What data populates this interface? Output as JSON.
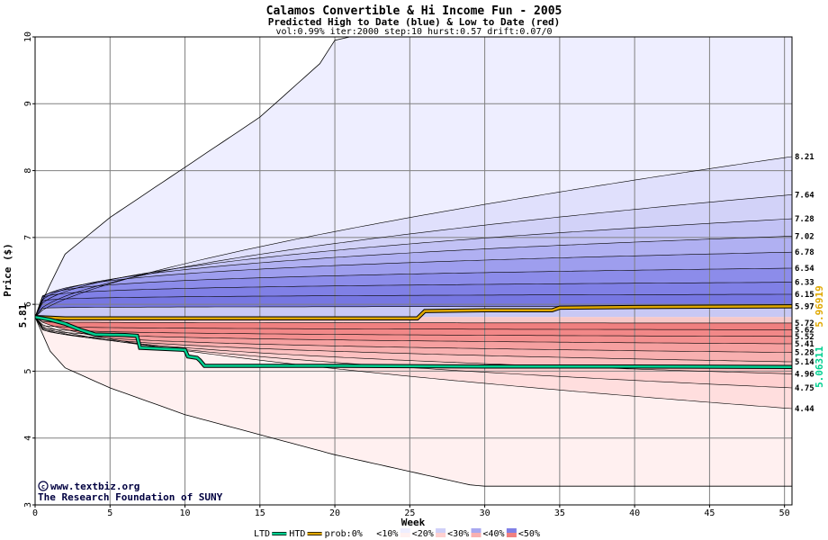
{
  "chart_data": {
    "type": "area",
    "title": "Calamos Convertible & Hi Income Fun - 2005",
    "subtitle": "Predicted High to Date (blue) &  Low to Date (red)",
    "params": "vol:0.99% iter:2000 step:10 hurst:0.57 drift:0.07/0",
    "xlabel": "Week",
    "ylabel": "Price ($)",
    "xlim": [
      0,
      50.5
    ],
    "ylim": [
      3,
      10
    ],
    "x_ticks": [
      0,
      5,
      10,
      15,
      20,
      25,
      30,
      35,
      40,
      45,
      50
    ],
    "y_ticks": [
      3,
      4,
      5,
      6,
      7,
      8,
      9,
      10
    ],
    "grid": true,
    "start_price": 5.81,
    "start_label": "5.81",
    "band_end_labels": [
      "8.21",
      "7.64",
      "7.28",
      "7.02",
      "6.78",
      "6.54",
      "6.33",
      "6.15",
      "5.97",
      "5.72",
      "5.62",
      "5.52",
      "5.41",
      "5.28",
      "5.14",
      "4.96",
      "4.75",
      "4.44"
    ],
    "outer_high": [
      [
        0,
        5.81
      ],
      [
        1,
        6.3
      ],
      [
        2,
        6.75
      ],
      [
        5,
        7.3
      ],
      [
        10,
        8.05
      ],
      [
        15,
        8.8
      ],
      [
        19,
        9.6
      ],
      [
        20,
        9.95
      ],
      [
        21,
        10
      ]
    ],
    "outer_low": [
      [
        0,
        5.81
      ],
      [
        1,
        5.3
      ],
      [
        2,
        5.05
      ],
      [
        5,
        4.75
      ],
      [
        10,
        4.35
      ],
      [
        15,
        4.05
      ],
      [
        20,
        3.75
      ],
      [
        25,
        3.5
      ],
      [
        29,
        3.3
      ],
      [
        30,
        3.28
      ],
      [
        50,
        3.28
      ]
    ],
    "high_bands": [
      {
        "end": 8.21,
        "k": 0.68
      },
      {
        "end": 7.64,
        "k": 0.55
      },
      {
        "end": 7.28,
        "k": 0.42
      },
      {
        "end": 7.02,
        "k": 0.33
      },
      {
        "end": 6.78,
        "k": 0.25
      },
      {
        "end": 6.54,
        "k": 0.18
      },
      {
        "end": 6.33,
        "k": 0.12
      },
      {
        "end": 6.15,
        "k": 0.07
      },
      {
        "end": 5.97,
        "k": 0.04
      }
    ],
    "low_bands": [
      {
        "end": 5.72,
        "k": 0.05
      },
      {
        "end": 5.62,
        "k": 0.08
      },
      {
        "end": 5.52,
        "k": 0.12
      },
      {
        "end": 5.41,
        "k": 0.17
      },
      {
        "end": 5.28,
        "k": 0.22
      },
      {
        "end": 5.14,
        "k": 0.29
      },
      {
        "end": 4.96,
        "k": 0.38
      },
      {
        "end": 4.75,
        "k": 0.48
      },
      {
        "end": 4.44,
        "k": 0.62
      }
    ],
    "series": [
      {
        "name": "HTD",
        "color": "#e0a800",
        "end_label": "5.96919",
        "points": [
          [
            0,
            5.81
          ],
          [
            1,
            5.8
          ],
          [
            2,
            5.79
          ],
          [
            5,
            5.79
          ],
          [
            10,
            5.79
          ],
          [
            15,
            5.79
          ],
          [
            20,
            5.79
          ],
          [
            25.5,
            5.79
          ],
          [
            26,
            5.9
          ],
          [
            30,
            5.91
          ],
          [
            34.5,
            5.91
          ],
          [
            35,
            5.95
          ],
          [
            40,
            5.96
          ],
          [
            50.5,
            5.969
          ]
        ]
      },
      {
        "name": "LTD",
        "color": "#00d090",
        "end_label": "5.06311",
        "points": [
          [
            0,
            5.81
          ],
          [
            1,
            5.77
          ],
          [
            2,
            5.71
          ],
          [
            3,
            5.62
          ],
          [
            4,
            5.55
          ],
          [
            6,
            5.54
          ],
          [
            6.8,
            5.53
          ],
          [
            7,
            5.35
          ],
          [
            10,
            5.32
          ],
          [
            10.2,
            5.22
          ],
          [
            10.8,
            5.2
          ],
          [
            11,
            5.16
          ],
          [
            11.3,
            5.08
          ],
          [
            15,
            5.08
          ],
          [
            20,
            5.08
          ],
          [
            30,
            5.07
          ],
          [
            40,
            5.07
          ],
          [
            50.5,
            5.063
          ]
        ]
      }
    ],
    "band_colors": {
      "blue": [
        "#eeeeff",
        "#e0e0fc",
        "#d2d2f8",
        "#c2c2f5",
        "#b0b0f2",
        "#9e9eee",
        "#8c8cea",
        "#8080e6",
        "#7777e2",
        "#c8c8f4"
      ],
      "red": [
        "#fff0f0",
        "#ffdede",
        "#ffd0d0",
        "#fcc0c0",
        "#f8b0b0",
        "#f6a0a0",
        "#f49090",
        "#f28888",
        "#f08080",
        "#f8c8c8"
      ]
    },
    "legend": {
      "ltd": "LTD",
      "htd": "HTD",
      "prob_prefix": "prob:0%",
      "items": [
        {
          "label": "<10%",
          "blue": "#ffffff",
          "red": "#ffffff"
        },
        {
          "label": "<20%",
          "blue": "#eeeeff",
          "red": "#fff0f0"
        },
        {
          "label": "<30%",
          "blue": "#d0d0f8",
          "red": "#ffd0d0"
        },
        {
          "label": "<40%",
          "blue": "#a8a8f0",
          "red": "#f8b0b0"
        },
        {
          "label": "<50%",
          "blue": "#8080e6",
          "red": "#f08080"
        }
      ]
    }
  },
  "credits": {
    "line1": "www.textbiz.org",
    "line2": "The Research Foundation of SUNY"
  }
}
